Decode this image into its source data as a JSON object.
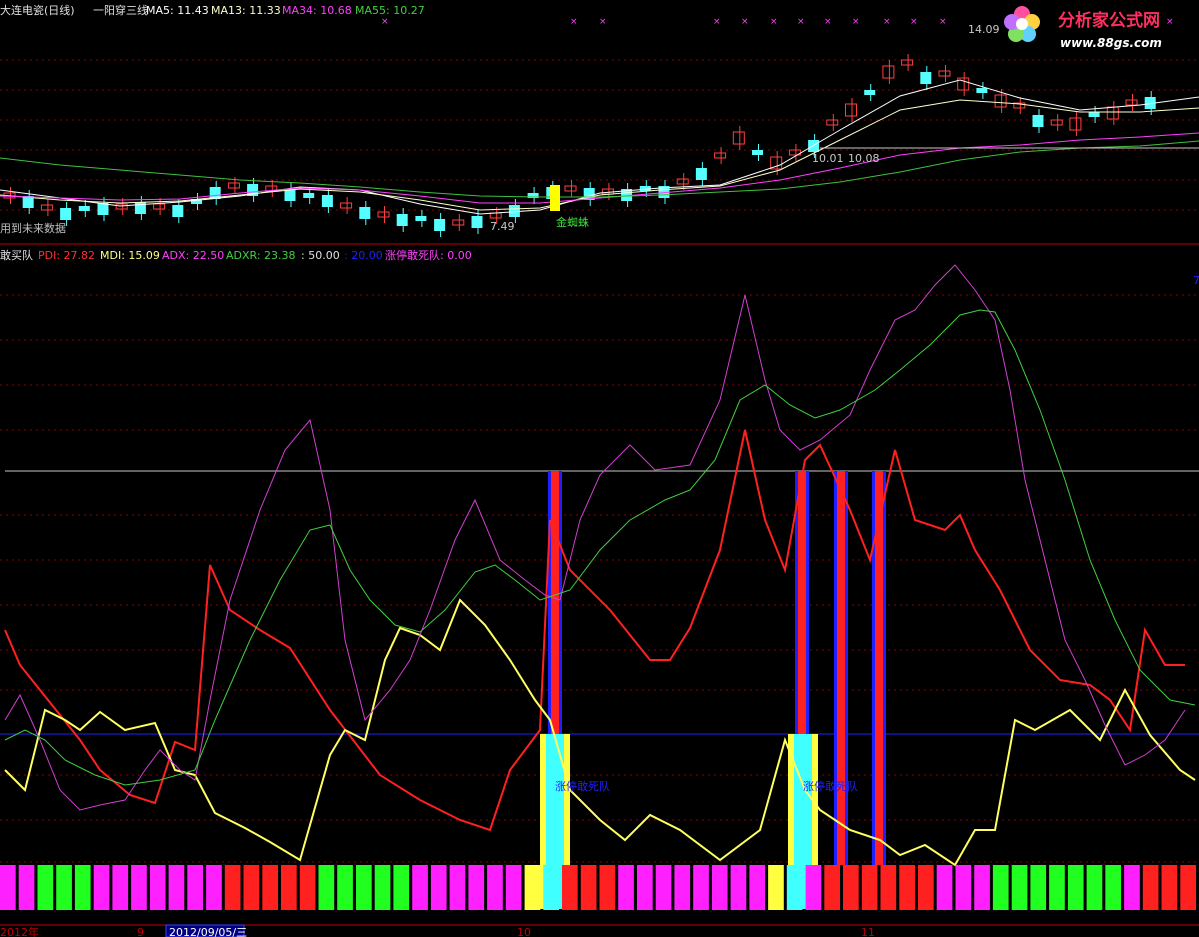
{
  "colors": {
    "bg": "#000000",
    "grid": "#8b0000",
    "divider": "#c00000",
    "ma5": "#ffffff",
    "ma13": "#ffffcc",
    "ma34": "#ff40ff",
    "ma55": "#40c040",
    "up_candle": "#ff4040",
    "down_candle": "#55ffff",
    "pdi": "#ff2020",
    "mdi": "#ffff60",
    "adx": "#d040d0",
    "adxr": "#40d040",
    "level50": "#c8c8c8",
    "level20": "#2020ff",
    "highlight": "#ffff00"
  },
  "header_top": {
    "title": "大连电瓷(日线)",
    "indicator": "一阳穿三线",
    "ma5": "MA5: 11.43",
    "ma13": "MA13: 11.33",
    "ma34": "MA34: 10.68",
    "ma55": "MA55: 10.27"
  },
  "header_bottom": {
    "name": "敢买队",
    "pdi": "PDI: 27.82",
    "mdi": "MDI: 15.09",
    "adx": "ADX: 22.50",
    "adxr": "ADXR: 23.38",
    "v50": ": 50.00",
    "v20": ": 20.00",
    "signal": "涨停敢死队: 0.00"
  },
  "top_note": "用到未来数据",
  "annotations": {
    "high_price": "14.09",
    "low_price": "7.49",
    "mid_price_a": "10.01",
    "mid_price_b": "10.08",
    "spider_label": "金蜘蛛",
    "signal_label_1": "涨停敢死队",
    "signal_label_2": "涨停敢死队"
  },
  "right_marker": "7",
  "axis_labels": {
    "year": "2012年",
    "month_sep": "9",
    "date_cursor": "2012/09/05/三",
    "month_oct": "10",
    "month_nov": "11"
  },
  "watermark": {
    "title": "分析家公式网",
    "url": "www.88gs.com"
  }
}
